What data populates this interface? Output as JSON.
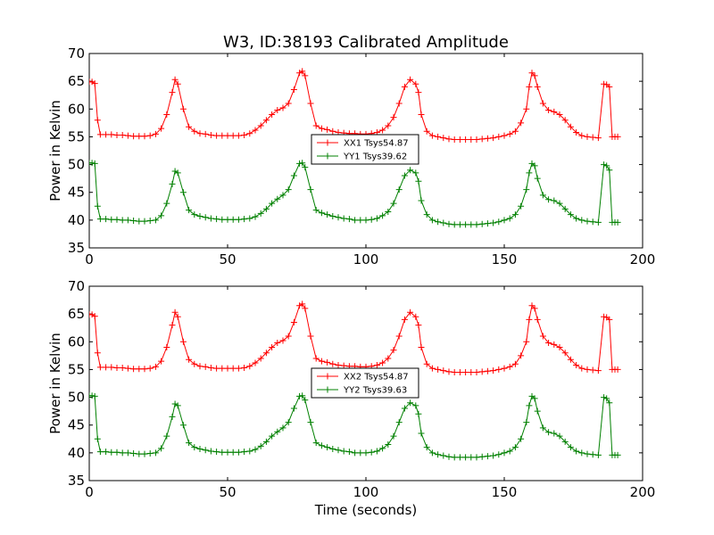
{
  "figure": {
    "title": "W3, ID:38193 Calibrated Amplitude",
    "xlabel": "Time (seconds)"
  },
  "chart_data": [
    {
      "type": "line",
      "ylabel": "Power in Kelvin",
      "xlim": [
        0,
        200
      ],
      "ylim": [
        35,
        70
      ],
      "xticks": [
        0,
        50,
        100,
        150,
        200
      ],
      "yticks": [
        35,
        40,
        45,
        50,
        55,
        60,
        65,
        70
      ],
      "legend_position": "center",
      "series": [
        {
          "name": "XX1 Tsys54.87",
          "color": "#ff0000",
          "marker": "plus",
          "x": [
            0,
            1,
            2,
            3,
            4,
            6,
            8,
            10,
            12,
            14,
            16,
            18,
            20,
            22,
            24,
            26,
            28,
            30,
            31,
            32,
            34,
            36,
            38,
            40,
            42,
            44,
            46,
            48,
            50,
            52,
            54,
            56,
            58,
            60,
            62,
            64,
            66,
            68,
            70,
            72,
            74,
            76,
            77,
            78,
            80,
            82,
            84,
            86,
            88,
            90,
            92,
            94,
            96,
            98,
            100,
            102,
            104,
            106,
            108,
            110,
            112,
            114,
            116,
            118,
            119,
            120,
            122,
            124,
            126,
            128,
            130,
            132,
            134,
            136,
            138,
            140,
            142,
            144,
            146,
            148,
            150,
            152,
            154,
            156,
            158,
            159,
            160,
            161,
            162,
            164,
            166,
            168,
            170,
            172,
            174,
            176,
            178,
            180,
            182,
            184,
            186,
            187,
            188,
            189,
            190,
            191
          ],
          "y": [
            64.9,
            64.9,
            64.6,
            58.0,
            55.4,
            55.4,
            55.4,
            55.3,
            55.3,
            55.2,
            55.1,
            55.1,
            55.1,
            55.2,
            55.5,
            56.5,
            59.0,
            63.0,
            65.3,
            64.5,
            60.0,
            56.8,
            56.0,
            55.6,
            55.5,
            55.3,
            55.2,
            55.2,
            55.2,
            55.2,
            55.2,
            55.3,
            55.6,
            56.2,
            57.0,
            58.0,
            59.0,
            59.8,
            60.2,
            61.0,
            63.5,
            66.5,
            66.8,
            66.0,
            61.0,
            57.0,
            56.5,
            56.3,
            56.0,
            55.8,
            55.7,
            55.6,
            55.6,
            55.5,
            55.5,
            55.6,
            55.8,
            56.2,
            57.0,
            58.5,
            61.0,
            64.0,
            65.3,
            64.5,
            63.0,
            59.0,
            56.0,
            55.2,
            55.0,
            54.8,
            54.6,
            54.5,
            54.5,
            54.5,
            54.5,
            54.5,
            54.6,
            54.7,
            54.8,
            55.0,
            55.2,
            55.5,
            56.0,
            57.5,
            60.0,
            64.0,
            66.5,
            66.0,
            64.0,
            61.0,
            59.8,
            59.5,
            59.0,
            58.0,
            56.8,
            55.8,
            55.2,
            55.0,
            54.9,
            54.8,
            64.5,
            64.4,
            64.0,
            55.0,
            55.0,
            55.0
          ]
        },
        {
          "name": "YY1 Tsys39.62",
          "color": "#008000",
          "marker": "plus",
          "x": [
            0,
            1,
            2,
            3,
            4,
            6,
            8,
            10,
            12,
            14,
            16,
            18,
            20,
            22,
            24,
            26,
            28,
            30,
            31,
            32,
            34,
            36,
            38,
            40,
            42,
            44,
            46,
            48,
            50,
            52,
            54,
            56,
            58,
            60,
            62,
            64,
            66,
            68,
            70,
            72,
            74,
            76,
            77,
            78,
            80,
            82,
            84,
            86,
            88,
            90,
            92,
            94,
            96,
            98,
            100,
            102,
            104,
            106,
            108,
            110,
            112,
            114,
            116,
            118,
            119,
            120,
            122,
            124,
            126,
            128,
            130,
            132,
            134,
            136,
            138,
            140,
            142,
            144,
            146,
            148,
            150,
            152,
            154,
            156,
            158,
            159,
            160,
            161,
            162,
            164,
            166,
            168,
            170,
            172,
            174,
            176,
            178,
            180,
            182,
            184,
            186,
            187,
            188,
            189,
            190,
            191
          ],
          "y": [
            50.3,
            50.3,
            50.2,
            42.5,
            40.2,
            40.2,
            40.1,
            40.1,
            40.0,
            40.0,
            39.9,
            39.8,
            39.8,
            39.9,
            40.0,
            40.8,
            43.0,
            46.5,
            48.8,
            48.5,
            45.0,
            41.8,
            41.0,
            40.7,
            40.5,
            40.3,
            40.2,
            40.1,
            40.1,
            40.1,
            40.1,
            40.2,
            40.3,
            40.6,
            41.2,
            42.0,
            43.0,
            43.8,
            44.5,
            45.5,
            48.0,
            50.2,
            50.3,
            49.5,
            45.5,
            41.8,
            41.3,
            41.0,
            40.7,
            40.5,
            40.3,
            40.2,
            40.0,
            40.0,
            40.0,
            40.1,
            40.3,
            40.8,
            41.5,
            43.0,
            45.5,
            48.0,
            49.0,
            48.5,
            47.0,
            43.5,
            41.0,
            40.0,
            39.7,
            39.5,
            39.3,
            39.2,
            39.2,
            39.2,
            39.2,
            39.2,
            39.3,
            39.4,
            39.5,
            39.7,
            40.0,
            40.3,
            41.0,
            42.5,
            45.5,
            48.5,
            50.2,
            49.8,
            47.5,
            44.5,
            43.7,
            43.5,
            43.0,
            42.0,
            41.0,
            40.3,
            40.0,
            39.8,
            39.7,
            39.6,
            50.0,
            49.8,
            49.0,
            39.6,
            39.6,
            39.6
          ]
        }
      ]
    },
    {
      "type": "line",
      "ylabel": "Power in Kelvin",
      "xlabel": "Time (seconds)",
      "xlim": [
        0,
        200
      ],
      "ylim": [
        35,
        70
      ],
      "xticks": [
        0,
        50,
        100,
        150,
        200
      ],
      "yticks": [
        35,
        40,
        45,
        50,
        55,
        60,
        65,
        70
      ],
      "legend_position": "center",
      "series": [
        {
          "name": "XX2 Tsys54.87",
          "color": "#ff0000",
          "marker": "plus",
          "x": [
            0,
            1,
            2,
            3,
            4,
            6,
            8,
            10,
            12,
            14,
            16,
            18,
            20,
            22,
            24,
            26,
            28,
            30,
            31,
            32,
            34,
            36,
            38,
            40,
            42,
            44,
            46,
            48,
            50,
            52,
            54,
            56,
            58,
            60,
            62,
            64,
            66,
            68,
            70,
            72,
            74,
            76,
            77,
            78,
            80,
            82,
            84,
            86,
            88,
            90,
            92,
            94,
            96,
            98,
            100,
            102,
            104,
            106,
            108,
            110,
            112,
            114,
            116,
            118,
            119,
            120,
            122,
            124,
            126,
            128,
            130,
            132,
            134,
            136,
            138,
            140,
            142,
            144,
            146,
            148,
            150,
            152,
            154,
            156,
            158,
            159,
            160,
            161,
            162,
            164,
            166,
            168,
            170,
            172,
            174,
            176,
            178,
            180,
            182,
            184,
            186,
            187,
            188,
            189,
            190,
            191
          ],
          "y": [
            64.9,
            64.9,
            64.6,
            58.0,
            55.4,
            55.4,
            55.4,
            55.3,
            55.3,
            55.2,
            55.1,
            55.1,
            55.1,
            55.2,
            55.5,
            56.5,
            59.0,
            63.0,
            65.3,
            64.5,
            60.0,
            56.8,
            56.0,
            55.6,
            55.5,
            55.3,
            55.2,
            55.2,
            55.2,
            55.2,
            55.2,
            55.3,
            55.6,
            56.2,
            57.0,
            58.0,
            59.0,
            59.8,
            60.2,
            61.0,
            63.5,
            66.5,
            66.8,
            66.0,
            61.0,
            57.0,
            56.5,
            56.3,
            56.0,
            55.8,
            55.7,
            55.6,
            55.6,
            55.5,
            55.5,
            55.6,
            55.8,
            56.2,
            57.0,
            58.5,
            61.0,
            64.0,
            65.3,
            64.5,
            63.0,
            59.0,
            56.0,
            55.2,
            55.0,
            54.8,
            54.6,
            54.5,
            54.5,
            54.5,
            54.5,
            54.5,
            54.6,
            54.7,
            54.8,
            55.0,
            55.2,
            55.5,
            56.0,
            57.5,
            60.0,
            64.0,
            66.5,
            66.0,
            64.0,
            61.0,
            59.8,
            59.5,
            59.0,
            58.0,
            56.8,
            55.8,
            55.2,
            55.0,
            54.9,
            54.8,
            64.5,
            64.4,
            64.0,
            55.0,
            55.0,
            55.0
          ]
        },
        {
          "name": "YY2 Tsys39.63",
          "color": "#008000",
          "marker": "plus",
          "x": [
            0,
            1,
            2,
            3,
            4,
            6,
            8,
            10,
            12,
            14,
            16,
            18,
            20,
            22,
            24,
            26,
            28,
            30,
            31,
            32,
            34,
            36,
            38,
            40,
            42,
            44,
            46,
            48,
            50,
            52,
            54,
            56,
            58,
            60,
            62,
            64,
            66,
            68,
            70,
            72,
            74,
            76,
            77,
            78,
            80,
            82,
            84,
            86,
            88,
            90,
            92,
            94,
            96,
            98,
            100,
            102,
            104,
            106,
            108,
            110,
            112,
            114,
            116,
            118,
            119,
            120,
            122,
            124,
            126,
            128,
            130,
            132,
            134,
            136,
            138,
            140,
            142,
            144,
            146,
            148,
            150,
            152,
            154,
            156,
            158,
            159,
            160,
            161,
            162,
            164,
            166,
            168,
            170,
            172,
            174,
            176,
            178,
            180,
            182,
            184,
            186,
            187,
            188,
            189,
            190,
            191
          ],
          "y": [
            50.3,
            50.3,
            50.2,
            42.5,
            40.2,
            40.2,
            40.1,
            40.1,
            40.0,
            40.0,
            39.9,
            39.8,
            39.8,
            39.9,
            40.0,
            40.8,
            43.0,
            46.5,
            48.8,
            48.5,
            45.0,
            41.8,
            41.0,
            40.7,
            40.5,
            40.3,
            40.2,
            40.1,
            40.1,
            40.1,
            40.1,
            40.2,
            40.3,
            40.6,
            41.2,
            42.0,
            43.0,
            43.8,
            44.5,
            45.5,
            48.0,
            50.2,
            50.3,
            49.5,
            45.5,
            41.8,
            41.3,
            41.0,
            40.7,
            40.5,
            40.3,
            40.2,
            40.0,
            40.0,
            40.0,
            40.1,
            40.3,
            40.8,
            41.5,
            43.0,
            45.5,
            48.0,
            49.0,
            48.5,
            47.0,
            43.5,
            41.0,
            40.0,
            39.7,
            39.5,
            39.3,
            39.2,
            39.2,
            39.2,
            39.2,
            39.2,
            39.3,
            39.4,
            39.5,
            39.7,
            40.0,
            40.3,
            41.0,
            42.5,
            45.5,
            48.5,
            50.2,
            49.8,
            47.5,
            44.5,
            43.7,
            43.5,
            43.0,
            42.0,
            41.0,
            40.3,
            40.0,
            39.8,
            39.7,
            39.6,
            50.0,
            49.8,
            49.0,
            39.6,
            39.6,
            39.6
          ]
        }
      ]
    }
  ]
}
